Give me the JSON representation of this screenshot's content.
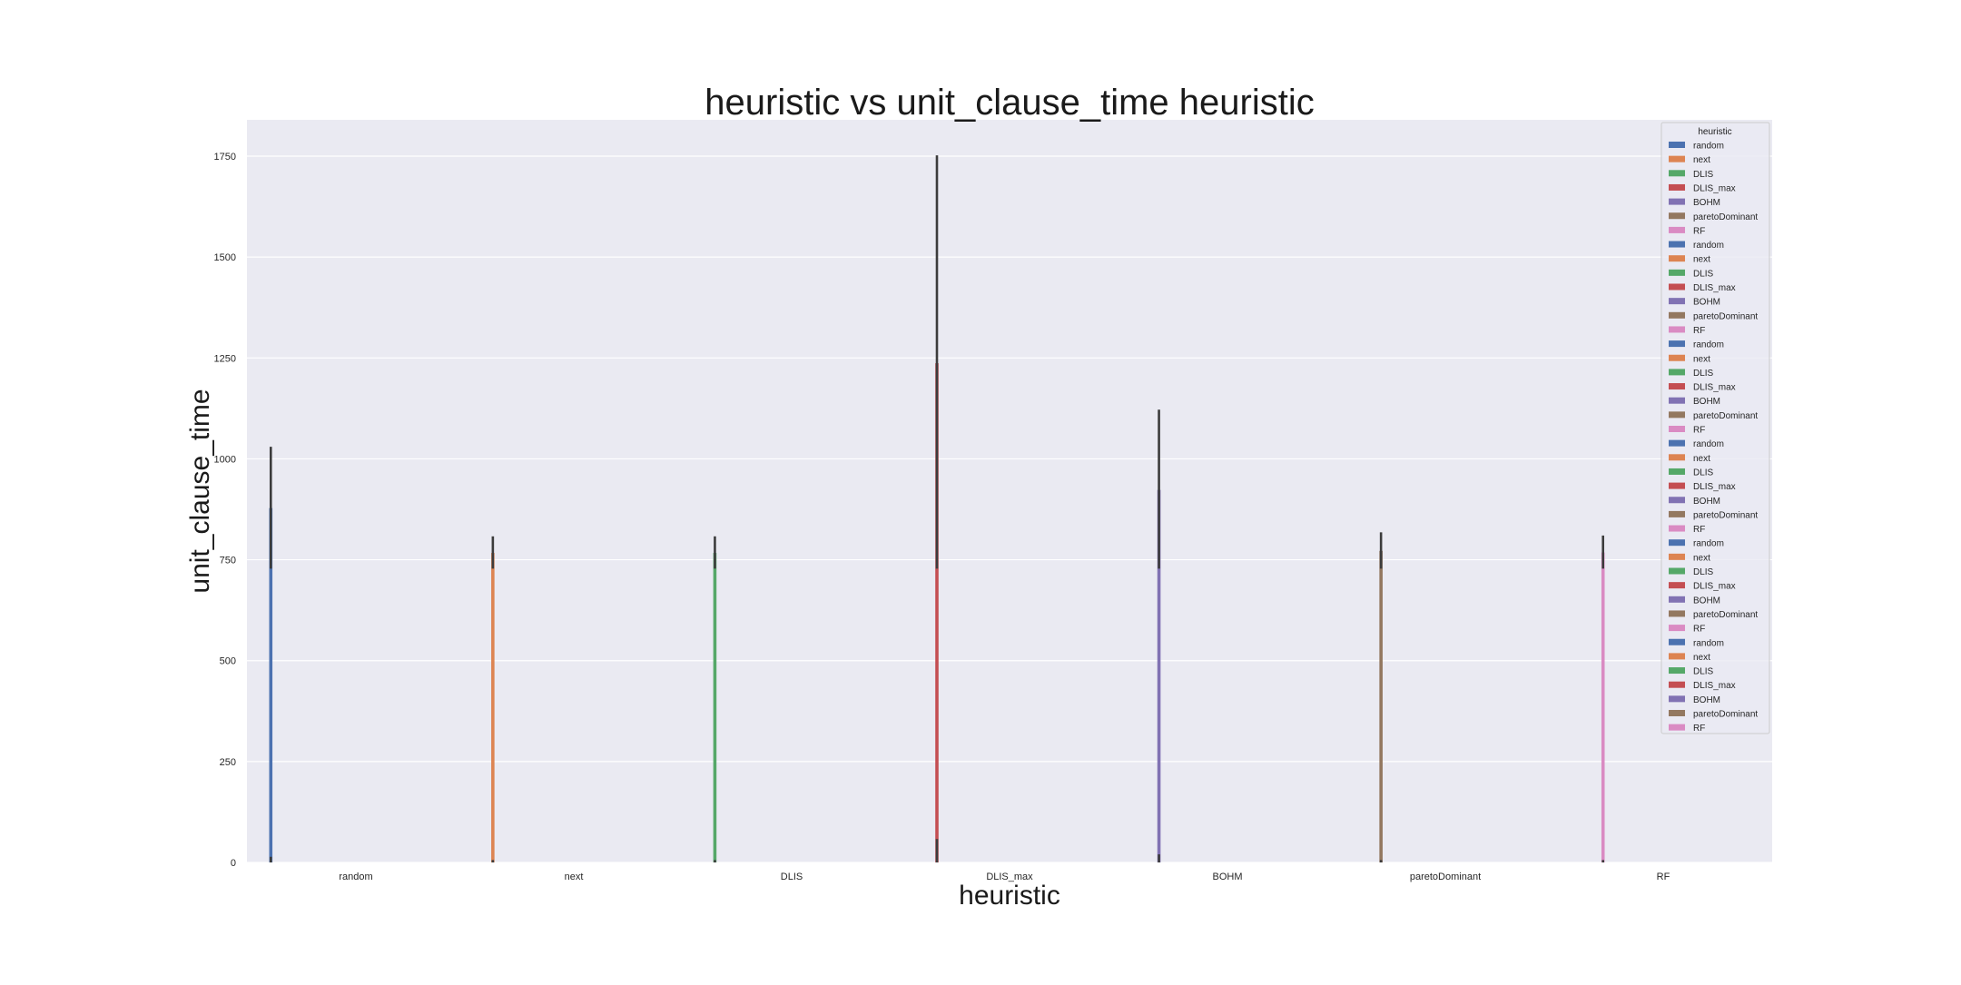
{
  "chart_data": {
    "type": "bar",
    "title": "heuristic vs unit_clause_time heuristic",
    "xlabel": "heuristic",
    "ylabel": "unit_clause_time",
    "categories": [
      "random",
      "next",
      "DLIS",
      "DLIS_max",
      "BOHM",
      "paretoDominant",
      "RF"
    ],
    "ylim": [
      0,
      1840
    ],
    "yticks": [
      0,
      250,
      500,
      750,
      1000,
      1250,
      1500,
      1750
    ],
    "grid": true,
    "legend_position": "top-right",
    "legend_title": "heuristic",
    "legend_entries": [
      "random",
      "next",
      "DLIS",
      "DLIS_max",
      "BOHM",
      "paretoDominant",
      "RF",
      "random",
      "next",
      "DLIS",
      "DLIS_max",
      "BOHM",
      "paretoDominant",
      "RF",
      "random",
      "next",
      "DLIS",
      "DLIS_max",
      "BOHM",
      "paretoDominant",
      "RF",
      "random",
      "next",
      "DLIS",
      "DLIS_max",
      "BOHM",
      "paretoDominant",
      "RF",
      "random",
      "next",
      "DLIS",
      "DLIS_max",
      "BOHM",
      "paretoDominant",
      "RF",
      "random",
      "next",
      "DLIS",
      "DLIS_max",
      "BOHM",
      "paretoDominant",
      "RF"
    ],
    "hue_slots": 42,
    "colors": [
      "#4c72b0",
      "#dd8452",
      "#55a868",
      "#c44e52",
      "#8172b3",
      "#937860",
      "#da8bc3"
    ],
    "series": [
      {
        "name": "random",
        "category": "random",
        "hue_slot": 0,
        "value": 878,
        "ci": [
          728,
          1030
        ],
        "zero_ci": [
          0,
          14
        ]
      },
      {
        "name": "next",
        "category": "next",
        "hue_slot": 1,
        "value": 767,
        "ci": [
          728,
          808
        ],
        "zero_ci": [
          0,
          6
        ]
      },
      {
        "name": "DLIS",
        "category": "DLIS",
        "hue_slot": 2,
        "value": 767,
        "ci": [
          728,
          808
        ],
        "zero_ci": [
          0,
          6
        ]
      },
      {
        "name": "DLIS_max",
        "category": "DLIS_max",
        "hue_slot": 3,
        "value": 1237,
        "ci": [
          728,
          1752
        ],
        "zero_ci": [
          0,
          58
        ]
      },
      {
        "name": "BOHM",
        "category": "BOHM",
        "hue_slot": 4,
        "value": 923,
        "ci": [
          728,
          1122
        ],
        "zero_ci": [
          0,
          20
        ]
      },
      {
        "name": "paretoDominant",
        "category": "paretoDominant",
        "hue_slot": 5,
        "value": 772,
        "ci": [
          728,
          818
        ],
        "zero_ci": [
          0,
          6
        ]
      },
      {
        "name": "RF",
        "category": "RF",
        "hue_slot": 6,
        "value": 768,
        "ci": [
          728,
          810
        ],
        "zero_ci": [
          0,
          6
        ]
      }
    ]
  }
}
